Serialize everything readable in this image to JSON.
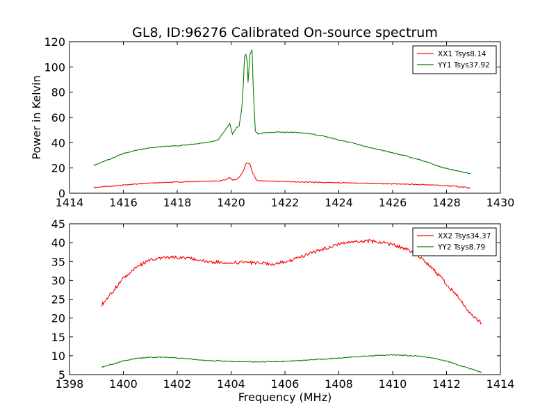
{
  "title": "GL8, ID:96276 Calibrated On-source spectrum",
  "ylabel": "Power in Kelvin",
  "xlabel": "Frequency (MHz)",
  "chart_data": [
    {
      "type": "line",
      "xlim": [
        1414,
        1430
      ],
      "ylim": [
        0,
        120
      ],
      "xticks": [
        1414,
        1416,
        1418,
        1420,
        1422,
        1424,
        1426,
        1428,
        1430
      ],
      "yticks": [
        0,
        20,
        40,
        60,
        80,
        100,
        120
      ],
      "legend_position": "top-right",
      "series": [
        {
          "name": "XX1 Tsys8.14",
          "color": "#ff0000",
          "x": [
            1414.9,
            1415.5,
            1416,
            1417,
            1418,
            1419,
            1419.5,
            1419.8,
            1419.95,
            1420.05,
            1420.15,
            1420.3,
            1420.45,
            1420.55,
            1420.6,
            1420.7,
            1420.8,
            1420.95,
            1421.2,
            1422,
            1423,
            1424,
            1425,
            1426,
            1427,
            1428,
            1428.9
          ],
          "y": [
            4.5,
            5.5,
            6.5,
            8,
            8.8,
            9.4,
            9.6,
            10.5,
            12.5,
            10.5,
            10.8,
            12.5,
            17,
            23.5,
            24,
            23,
            16,
            10.3,
            9.8,
            9.3,
            8.7,
            8.3,
            7.9,
            7.4,
            6.9,
            6.0,
            4.2
          ]
        },
        {
          "name": "YY1 Tsys37.92",
          "color": "#008000",
          "x": [
            1414.9,
            1415.5,
            1416,
            1416.5,
            1417,
            1417.5,
            1418,
            1418.5,
            1419,
            1419.3,
            1419.5,
            1419.75,
            1419.95,
            1420.05,
            1420.2,
            1420.3,
            1420.4,
            1420.45,
            1420.5,
            1420.55,
            1420.6,
            1420.63,
            1420.7,
            1420.78,
            1420.82,
            1420.9,
            1421.0,
            1421.3,
            1421.8,
            1422.5,
            1423,
            1423.5,
            1424,
            1424.5,
            1425,
            1425.5,
            1426,
            1426.5,
            1427,
            1427.5,
            1428,
            1428.9
          ],
          "y": [
            22,
            27,
            31.5,
            34,
            36,
            37,
            37.5,
            38.5,
            40,
            41,
            42,
            49,
            55,
            47,
            52,
            53,
            68,
            84,
            108,
            110,
            104,
            88,
            110,
            113,
            85,
            49,
            47,
            48,
            48.5,
            48,
            47,
            45,
            42,
            40,
            37,
            34.5,
            32,
            29.5,
            26.5,
            23,
            19.5,
            15.5
          ]
        }
      ]
    },
    {
      "type": "line",
      "xlim": [
        1398,
        1414
      ],
      "ylim": [
        5,
        45
      ],
      "xticks": [
        1398,
        1400,
        1402,
        1404,
        1406,
        1408,
        1410,
        1412,
        1414
      ],
      "yticks": [
        5,
        10,
        15,
        20,
        25,
        30,
        35,
        40,
        45
      ],
      "legend_position": "top-right",
      "series": [
        {
          "name": "XX2 Tsys34.37",
          "color": "#ff0000",
          "x": [
            1399.2,
            1399.6,
            1400,
            1400.5,
            1401,
            1401.5,
            1402,
            1402.5,
            1403,
            1403.5,
            1404,
            1404.5,
            1405,
            1405.5,
            1406,
            1406.5,
            1407,
            1407.5,
            1408,
            1408.5,
            1409,
            1409.5,
            1410,
            1410.5,
            1411,
            1411.5,
            1412,
            1412.5,
            1412.8,
            1413.3
          ],
          "y": [
            23.5,
            27,
            30.5,
            33.5,
            35.5,
            36,
            36,
            35.7,
            35.2,
            34.8,
            34.7,
            34.8,
            34.5,
            34.3,
            34.8,
            36,
            37.3,
            38.5,
            39.7,
            40.3,
            40.5,
            40.2,
            39.5,
            38.3,
            36.2,
            33,
            29,
            25,
            22,
            18.5
          ]
        },
        {
          "name": "YY2 Tsys8.79",
          "color": "#008000",
          "x": [
            1399.2,
            1399.6,
            1400,
            1400.5,
            1401,
            1401.5,
            1402,
            1402.5,
            1403,
            1404,
            1405,
            1406,
            1407,
            1408,
            1409,
            1409.5,
            1410,
            1410.5,
            1411,
            1411.5,
            1412,
            1412.5,
            1413,
            1413.3
          ],
          "y": [
            7,
            7.8,
            8.6,
            9.3,
            9.6,
            9.6,
            9.4,
            9.1,
            8.8,
            8.5,
            8.4,
            8.5,
            8.9,
            9.4,
            9.9,
            10.1,
            10.2,
            10.1,
            9.9,
            9.4,
            8.6,
            7.4,
            6.3,
            5.6
          ]
        }
      ]
    }
  ]
}
